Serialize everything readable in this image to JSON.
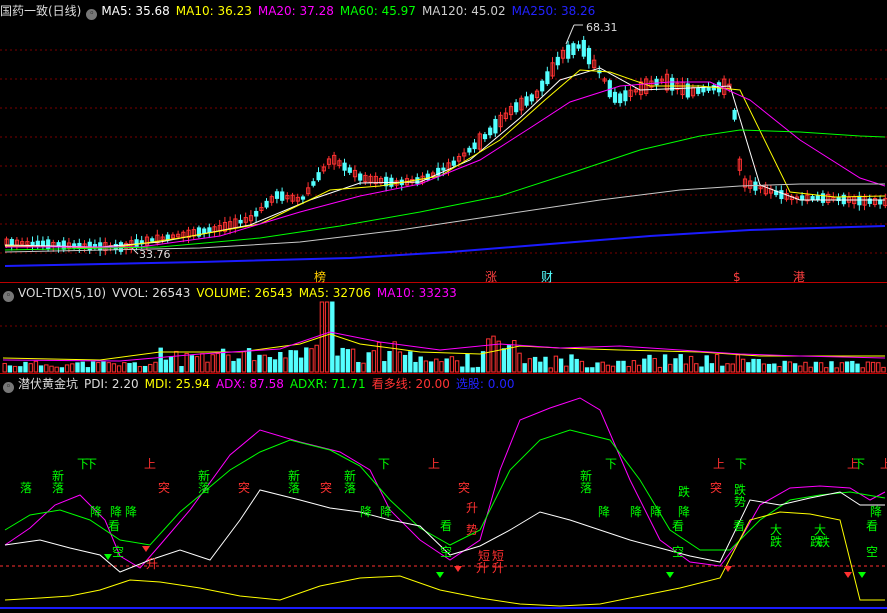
{
  "main_panel": {
    "title": "国药一致(日线)",
    "indicators": [
      {
        "label": "MA5: 35.68",
        "color": "#ffffff"
      },
      {
        "label": "MA10: 36.23",
        "color": "#ffff00"
      },
      {
        "label": "MA20: 37.28",
        "color": "#ff00ff"
      },
      {
        "label": "MA60: 45.97",
        "color": "#00ff00"
      },
      {
        "label": "MA120: 45.02",
        "color": "#c0c0c0"
      },
      {
        "label": "MA250: 38.26",
        "color": "#0000ff"
      }
    ],
    "high_label": "68.31",
    "low_label": "33.76",
    "event_markers": [
      "榜",
      "涨",
      "财",
      "$",
      "港"
    ]
  },
  "volume_panel": {
    "indicators": [
      {
        "label": "VOL-TDX(5,10)",
        "color": "#dddddd"
      },
      {
        "label": "VVOL: 26543",
        "color": "#dddddd"
      },
      {
        "label": "VOLUME: 26543",
        "color": "#ffff00"
      },
      {
        "label": "MA5: 32706",
        "color": "#ffff00"
      },
      {
        "label": "MA10: 33233",
        "color": "#ff00ff"
      }
    ]
  },
  "indicator_panel": {
    "indicators": [
      {
        "label": "潜伏黄金坑",
        "color": "#dddddd"
      },
      {
        "label": "PDI: 2.20",
        "color": "#dddddd"
      },
      {
        "label": "MDI: 25.94",
        "color": "#ffff00"
      },
      {
        "label": "ADX: 87.58",
        "color": "#ff00ff"
      },
      {
        "label": "ADXR: 71.71",
        "color": "#00ff00"
      },
      {
        "label": "看多线: 20.00",
        "color": "#ff3030"
      },
      {
        "label": "选股: 0.00",
        "color": "#0000ff"
      }
    ],
    "signals": [
      "下",
      "上",
      "突",
      "落",
      "新",
      "降",
      "看",
      "空",
      "升",
      "势",
      "短",
      "跌",
      "大"
    ]
  },
  "colors": {
    "up": "#ff3232",
    "down": "#54ffff",
    "grid": "#8b0000",
    "bg": "#000000"
  }
}
